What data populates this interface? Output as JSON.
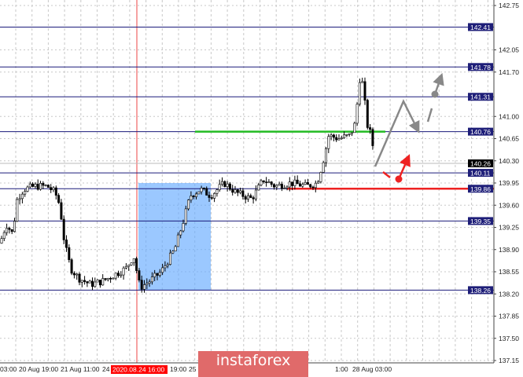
{
  "chart_data": {
    "type": "candlestick",
    "price_axis": {
      "ticks": [
        "142.75",
        "142.05",
        "141.70",
        "141.00",
        "140.65",
        "140.30",
        "139.95",
        "139.60",
        "139.25",
        "138.90",
        "138.55",
        "138.20",
        "137.85",
        "137.50",
        "137.15"
      ],
      "range": [
        137.15,
        142.75
      ]
    },
    "time_axis": {
      "ticks": [
        "03:00",
        "20 Aug 19:00",
        "21 Aug 11:00",
        "24",
        "19:00",
        "25",
        "1:00",
        "28 Aug 03:00"
      ],
      "highlighted": "2020.08.24 16:00"
    },
    "grid": true,
    "levels": [
      {
        "price": 142.41,
        "label": "142.41",
        "color": "#1a1a7a"
      },
      {
        "price": 141.78,
        "label": "141.78",
        "color": "#1a1a7a"
      },
      {
        "price": 141.31,
        "label": "141.31",
        "color": "#1a1a7a"
      },
      {
        "price": 140.76,
        "label": "140.76",
        "color": "#1a1a7a"
      },
      {
        "price": 140.11,
        "label": "140.11",
        "color": "#1a1a7a"
      },
      {
        "price": 139.86,
        "label": "139.86",
        "color": "#1a1a7a"
      },
      {
        "price": 139.35,
        "label": "139.35",
        "color": "#1a1a7a"
      },
      {
        "price": 138.26,
        "label": "138.26",
        "color": "#1a1a7a"
      }
    ],
    "current_price": {
      "price": 140.26,
      "label": "140.26",
      "color": "#000000"
    },
    "green_level": {
      "price": 140.76,
      "color": "#22bb22"
    },
    "red_level": {
      "price": 139.86,
      "color": "#ee2222"
    },
    "highlight_zone": {
      "price_low": 138.26,
      "price_high": 139.95,
      "color": "#66aaff"
    },
    "price_path": [
      [
        0,
        139.0
      ],
      [
        8,
        139.3
      ],
      [
        16,
        139.15
      ],
      [
        22,
        139.7
      ],
      [
        30,
        139.85
      ],
      [
        45,
        139.9
      ],
      [
        60,
        139.9
      ],
      [
        70,
        139.8
      ],
      [
        76,
        139.6
      ],
      [
        82,
        139.0
      ],
      [
        90,
        138.6
      ],
      [
        100,
        138.45
      ],
      [
        115,
        138.35
      ],
      [
        130,
        138.4
      ],
      [
        145,
        138.5
      ],
      [
        160,
        138.6
      ],
      [
        170,
        138.8
      ],
      [
        178,
        138.3
      ],
      [
        190,
        138.4
      ],
      [
        205,
        138.55
      ],
      [
        222,
        138.9
      ],
      [
        232,
        139.3
      ],
      [
        242,
        139.75
      ],
      [
        255,
        139.85
      ],
      [
        268,
        139.75
      ],
      [
        285,
        139.95
      ],
      [
        300,
        139.8
      ],
      [
        320,
        139.7
      ],
      [
        335,
        140.0
      ],
      [
        350,
        139.9
      ],
      [
        370,
        139.95
      ],
      [
        390,
        139.9
      ],
      [
        403,
        139.95
      ],
      [
        410,
        140.25
      ],
      [
        418,
        140.7
      ],
      [
        430,
        140.65
      ],
      [
        445,
        140.7
      ],
      [
        452,
        140.9
      ],
      [
        457,
        141.6
      ],
      [
        462,
        141.5
      ],
      [
        466,
        140.9
      ],
      [
        472,
        140.7
      ],
      [
        477,
        140.3
      ]
    ],
    "colors": {
      "bull": "#ffffff",
      "bear": "#000000",
      "forecast_primary": "#888888",
      "forecast_alt": "#ee2222"
    }
  },
  "branding": {
    "logo": "instaforex"
  }
}
